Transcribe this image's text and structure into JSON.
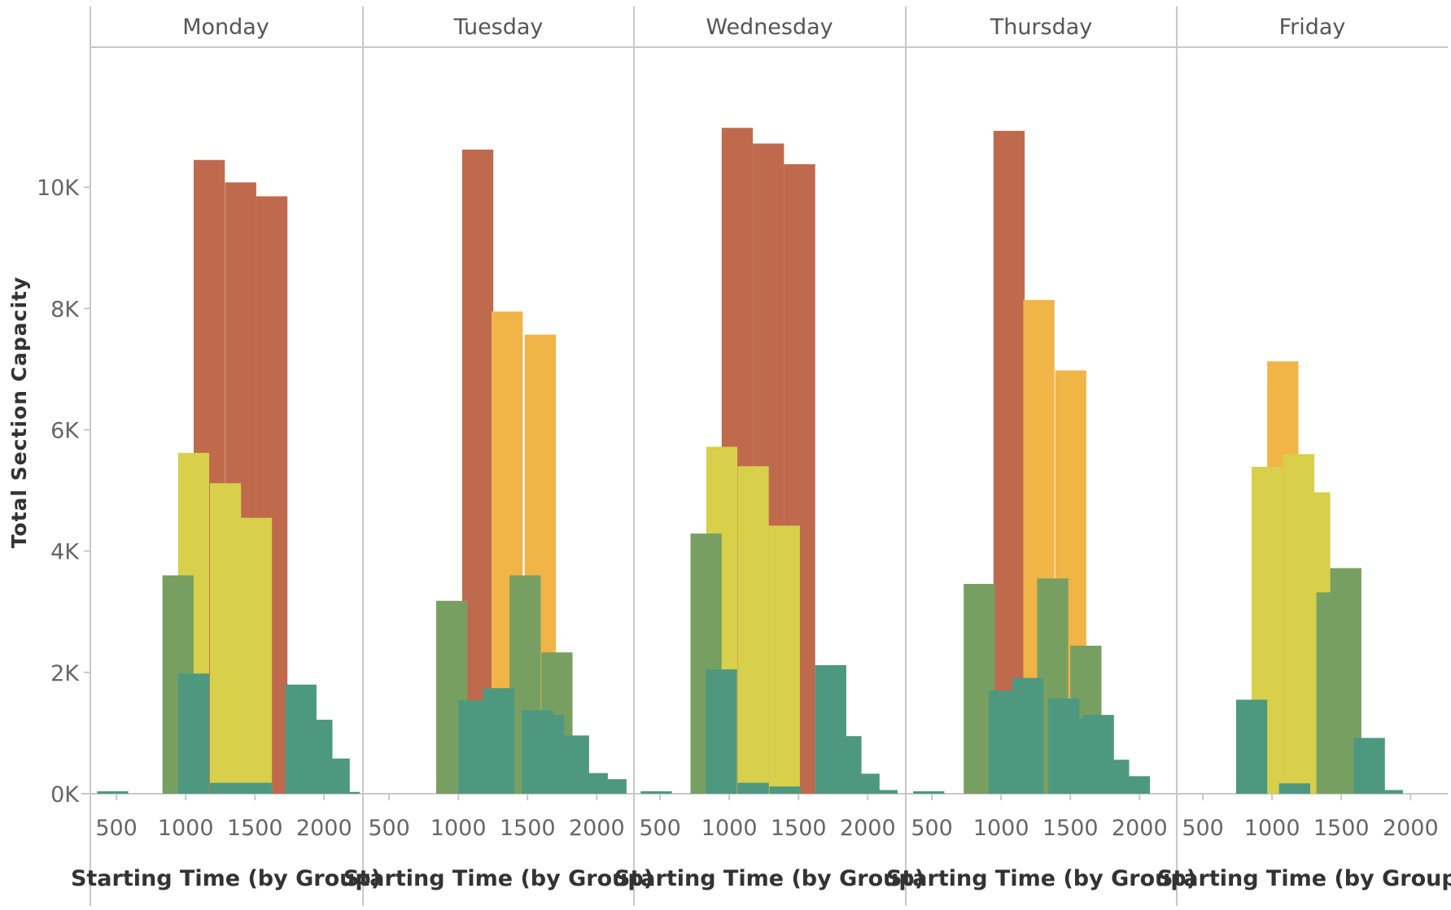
{
  "colors": {
    "gridline": "#d4d4d4",
    "axis": "#c8c8c8",
    "series_palette": [
      "#bf6a4d",
      "#f0b447",
      "#d8cf4a",
      "#789f62",
      "#4e9880"
    ]
  },
  "chart_data": {
    "type": "bar",
    "facet_by": "day",
    "facets": [
      "Monday",
      "Tuesday",
      "Wednesday",
      "Thursday",
      "Friday"
    ],
    "xlabel": "Starting Time (by Group)",
    "ylabel": "Total Section Capacity",
    "xlim": [
      370,
      2210
    ],
    "ylim": [
      0,
      11800
    ],
    "x_ticks": [
      500,
      1000,
      1500,
      2000
    ],
    "x_tick_labels": [
      "500",
      "1000",
      "1500",
      "2000"
    ],
    "y_ticks": [
      0,
      2000,
      4000,
      6000,
      8000,
      10000
    ],
    "y_tick_labels": [
      "0K",
      "2K",
      "4K",
      "6K",
      "8K",
      "10K"
    ],
    "grid": {
      "horizontal": false,
      "vertical": false
    },
    "legend": "none",
    "bar_width": 225,
    "panels": [
      {
        "day": "Monday",
        "bars": [
          {
            "x": 360,
            "value": 40,
            "color": "#4e9880"
          },
          {
            "x": 832,
            "value": 3600,
            "color": "#789f62"
          },
          {
            "x": 945,
            "value": 5620,
            "color": "#d8cf4a"
          },
          {
            "x": 1058,
            "value": 10450,
            "color": "#bf6a4d"
          },
          {
            "x": 1285,
            "value": 10080,
            "color": "#bf6a4d"
          },
          {
            "x": 1510,
            "value": 9850,
            "color": "#bf6a4d"
          },
          {
            "x": 1175,
            "value": 5120,
            "color": "#d8cf4a"
          },
          {
            "x": 1398,
            "value": 4550,
            "color": "#d8cf4a"
          },
          {
            "x": 945,
            "value": 1980,
            "color": "#4e9880"
          },
          {
            "x": 1175,
            "value": 180,
            "color": "#4e9880"
          },
          {
            "x": 1398,
            "value": 180,
            "color": "#4e9880"
          },
          {
            "x": 1720,
            "value": 1800,
            "color": "#4e9880"
          },
          {
            "x": 1835,
            "value": 1220,
            "color": "#4e9880"
          },
          {
            "x": 1960,
            "value": 580,
            "color": "#4e9880"
          },
          {
            "x": 2120,
            "value": 30,
            "color": "#4e9880"
          }
        ]
      },
      {
        "day": "Tuesday",
        "bars": [
          {
            "x": 840,
            "value": 3180,
            "color": "#789f62"
          },
          {
            "x": 1028,
            "value": 10620,
            "color": "#bf6a4d"
          },
          {
            "x": 1240,
            "value": 7950,
            "color": "#f0b447"
          },
          {
            "x": 1480,
            "value": 7570,
            "color": "#f0b447"
          },
          {
            "x": 1370,
            "value": 3600,
            "color": "#789f62"
          },
          {
            "x": 1600,
            "value": 2330,
            "color": "#789f62"
          },
          {
            "x": 1000,
            "value": 1540,
            "color": "#4e9880"
          },
          {
            "x": 1180,
            "value": 1740,
            "color": "#4e9880"
          },
          {
            "x": 1460,
            "value": 1380,
            "color": "#4e9880"
          },
          {
            "x": 1540,
            "value": 1300,
            "color": "#4e9880"
          },
          {
            "x": 1720,
            "value": 960,
            "color": "#4e9880"
          },
          {
            "x": 1855,
            "value": 340,
            "color": "#4e9880"
          },
          {
            "x": 1990,
            "value": 240,
            "color": "#4e9880"
          }
        ]
      },
      {
        "day": "Wednesday",
        "bars": [
          {
            "x": 360,
            "value": 40,
            "color": "#4e9880"
          },
          {
            "x": 720,
            "value": 4290,
            "color": "#789f62"
          },
          {
            "x": 833,
            "value": 5720,
            "color": "#d8cf4a"
          },
          {
            "x": 945,
            "value": 10980,
            "color": "#bf6a4d"
          },
          {
            "x": 1170,
            "value": 10720,
            "color": "#bf6a4d"
          },
          {
            "x": 1395,
            "value": 10380,
            "color": "#bf6a4d"
          },
          {
            "x": 1060,
            "value": 5400,
            "color": "#d8cf4a"
          },
          {
            "x": 1285,
            "value": 4420,
            "color": "#d8cf4a"
          },
          {
            "x": 830,
            "value": 2050,
            "color": "#4e9880"
          },
          {
            "x": 1060,
            "value": 180,
            "color": "#4e9880"
          },
          {
            "x": 1290,
            "value": 120,
            "color": "#4e9880"
          },
          {
            "x": 1620,
            "value": 2120,
            "color": "#4e9880"
          },
          {
            "x": 1730,
            "value": 950,
            "color": "#4e9880"
          },
          {
            "x": 1860,
            "value": 330,
            "color": "#4e9880"
          },
          {
            "x": 1990,
            "value": 60,
            "color": "#4e9880"
          }
        ]
      },
      {
        "day": "Thursday",
        "bars": [
          {
            "x": 365,
            "value": 40,
            "color": "#4e9880"
          },
          {
            "x": 730,
            "value": 3460,
            "color": "#789f62"
          },
          {
            "x": 945,
            "value": 10930,
            "color": "#bf6a4d"
          },
          {
            "x": 1160,
            "value": 8140,
            "color": "#f0b447"
          },
          {
            "x": 1390,
            "value": 6980,
            "color": "#f0b447"
          },
          {
            "x": 1260,
            "value": 3550,
            "color": "#789f62"
          },
          {
            "x": 1500,
            "value": 2440,
            "color": "#789f62"
          },
          {
            "x": 910,
            "value": 1700,
            "color": "#4e9880"
          },
          {
            "x": 1080,
            "value": 1910,
            "color": "#4e9880"
          },
          {
            "x": 1340,
            "value": 1570,
            "color": "#4e9880"
          },
          {
            "x": 1420,
            "value": 1240,
            "color": "#4e9880"
          },
          {
            "x": 1590,
            "value": 1300,
            "color": "#4e9880"
          },
          {
            "x": 1700,
            "value": 560,
            "color": "#4e9880"
          },
          {
            "x": 1850,
            "value": 290,
            "color": "#4e9880"
          }
        ]
      },
      {
        "day": "Friday",
        "bars": [
          {
            "x": 740,
            "value": 1550,
            "color": "#4e9880"
          },
          {
            "x": 852,
            "value": 5390,
            "color": "#d8cf4a"
          },
          {
            "x": 965,
            "value": 7130,
            "color": "#f0b447"
          },
          {
            "x": 1080,
            "value": 5600,
            "color": "#d8cf4a"
          },
          {
            "x": 1195,
            "value": 4970,
            "color": "#d8cf4a"
          },
          {
            "x": 1320,
            "value": 3320,
            "color": "#789f62"
          },
          {
            "x": 1420,
            "value": 3720,
            "color": "#789f62"
          },
          {
            "x": 1050,
            "value": 170,
            "color": "#4e9880"
          },
          {
            "x": 1590,
            "value": 920,
            "color": "#4e9880"
          },
          {
            "x": 1720,
            "value": 60,
            "color": "#4e9880"
          }
        ]
      }
    ]
  }
}
